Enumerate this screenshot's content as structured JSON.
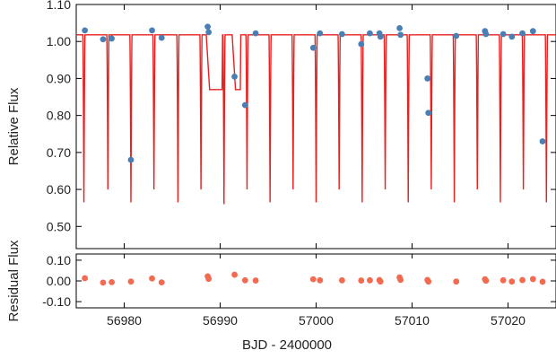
{
  "chart_data": [
    {
      "panel": "top",
      "type": "scatter",
      "ylabel": "Relative Flux",
      "xlim": [
        56975,
        57025
      ],
      "ylim": [
        0.44,
        1.1
      ],
      "yticks": [
        "1.10",
        "1.00",
        "0.90",
        "0.80",
        "0.70",
        "0.60",
        "0.50"
      ],
      "grid": false,
      "model_color": "#e8201f",
      "point_color": "#4a7fb5",
      "model": {
        "baseline": 1.018,
        "narrow_eclipses": [
          {
            "t": 56975.8,
            "depth": 0.565
          },
          {
            "t": 56978.3,
            "depth": 0.6
          },
          {
            "t": 56980.7,
            "depth": 0.565
          },
          {
            "t": 56983.1,
            "depth": 0.6
          },
          {
            "t": 56985.6,
            "depth": 0.565
          },
          {
            "t": 56988.0,
            "depth": 0.6
          },
          {
            "t": 56990.4,
            "depth": 0.56
          },
          {
            "t": 56992.8,
            "depth": 0.6
          },
          {
            "t": 56995.2,
            "depth": 0.565
          },
          {
            "t": 56997.6,
            "depth": 0.6
          },
          {
            "t": 57000.0,
            "depth": 0.565
          },
          {
            "t": 57002.4,
            "depth": 0.6
          },
          {
            "t": 57004.8,
            "depth": 0.565
          },
          {
            "t": 57007.2,
            "depth": 0.6
          },
          {
            "t": 57009.6,
            "depth": 0.565
          },
          {
            "t": 57012.0,
            "depth": 0.6
          },
          {
            "t": 57014.4,
            "depth": 0.565
          },
          {
            "t": 57016.8,
            "depth": 0.6
          },
          {
            "t": 57019.2,
            "depth": 0.565
          },
          {
            "t": 57021.6,
            "depth": 0.6
          },
          {
            "t": 57024.0,
            "depth": 0.565
          }
        ],
        "broad_dips": [
          {
            "t_start": 56988.9,
            "t_end": 56990.2,
            "depth": 0.87
          },
          {
            "t_start": 56991.6,
            "t_end": 56992.1,
            "depth": 0.87
          }
        ]
      },
      "points": [
        {
          "x": 56975.9,
          "y": 1.03
        },
        {
          "x": 56977.8,
          "y": 1.006
        },
        {
          "x": 56978.7,
          "y": 1.008
        },
        {
          "x": 56980.7,
          "y": 0.68
        },
        {
          "x": 56982.9,
          "y": 1.03
        },
        {
          "x": 56983.9,
          "y": 1.01
        },
        {
          "x": 56988.7,
          "y": 1.04
        },
        {
          "x": 56988.8,
          "y": 1.025
        },
        {
          "x": 56991.5,
          "y": 0.905
        },
        {
          "x": 56992.6,
          "y": 0.828
        },
        {
          "x": 56993.7,
          "y": 1.022
        },
        {
          "x": 56999.7,
          "y": 0.983
        },
        {
          "x": 57000.4,
          "y": 1.022
        },
        {
          "x": 57002.7,
          "y": 1.02
        },
        {
          "x": 57004.7,
          "y": 0.993
        },
        {
          "x": 57005.6,
          "y": 1.022
        },
        {
          "x": 57006.6,
          "y": 1.022
        },
        {
          "x": 57006.7,
          "y": 1.013
        },
        {
          "x": 57008.7,
          "y": 1.036
        },
        {
          "x": 57008.8,
          "y": 1.018
        },
        {
          "x": 57011.6,
          "y": 0.9
        },
        {
          "x": 57011.7,
          "y": 0.807
        },
        {
          "x": 57014.6,
          "y": 1.015
        },
        {
          "x": 57017.6,
          "y": 1.028
        },
        {
          "x": 57017.7,
          "y": 1.02
        },
        {
          "x": 57019.5,
          "y": 1.02
        },
        {
          "x": 57020.4,
          "y": 1.013
        },
        {
          "x": 57021.5,
          "y": 1.022
        },
        {
          "x": 57022.6,
          "y": 1.028
        },
        {
          "x": 57023.6,
          "y": 0.73
        }
      ]
    },
    {
      "panel": "bottom",
      "type": "scatter",
      "xlabel": "BJD - 2400000",
      "ylabel": "Residual Flux",
      "xlim": [
        56975,
        57025
      ],
      "ylim": [
        -0.13,
        0.13
      ],
      "xticks": [
        "56980",
        "56990",
        "57000",
        "57010",
        "57020"
      ],
      "yticks": [
        "0.10",
        "0.00",
        "-0.10"
      ],
      "grid": false,
      "point_color": "#f26a4f",
      "points": [
        {
          "x": 56975.9,
          "y": 0.013
        },
        {
          "x": 56977.8,
          "y": -0.008
        },
        {
          "x": 56978.7,
          "y": -0.006
        },
        {
          "x": 56980.7,
          "y": -0.003
        },
        {
          "x": 56982.9,
          "y": 0.012
        },
        {
          "x": 56983.9,
          "y": -0.007
        },
        {
          "x": 56988.7,
          "y": 0.022
        },
        {
          "x": 56988.8,
          "y": 0.01
        },
        {
          "x": 56991.5,
          "y": 0.03
        },
        {
          "x": 56992.6,
          "y": 0.003
        },
        {
          "x": 56993.7,
          "y": 0.002
        },
        {
          "x": 56999.7,
          "y": 0.008
        },
        {
          "x": 57000.4,
          "y": 0.003
        },
        {
          "x": 57002.7,
          "y": 0.003
        },
        {
          "x": 57004.7,
          "y": 0.002
        },
        {
          "x": 57005.6,
          "y": 0.003
        },
        {
          "x": 57006.6,
          "y": 0.004
        },
        {
          "x": 57006.7,
          "y": -0.003
        },
        {
          "x": 57008.7,
          "y": 0.017
        },
        {
          "x": 57008.8,
          "y": 0.005
        },
        {
          "x": 57011.6,
          "y": 0.005
        },
        {
          "x": 57011.7,
          "y": -0.003
        },
        {
          "x": 57014.6,
          "y": -0.003
        },
        {
          "x": 57017.6,
          "y": 0.008
        },
        {
          "x": 57017.7,
          "y": 0.001
        },
        {
          "x": 57019.5,
          "y": 0.003
        },
        {
          "x": 57020.4,
          "y": -0.003
        },
        {
          "x": 57021.5,
          "y": 0.004
        },
        {
          "x": 57022.6,
          "y": 0.009
        },
        {
          "x": 57023.6,
          "y": -0.004
        }
      ]
    }
  ]
}
